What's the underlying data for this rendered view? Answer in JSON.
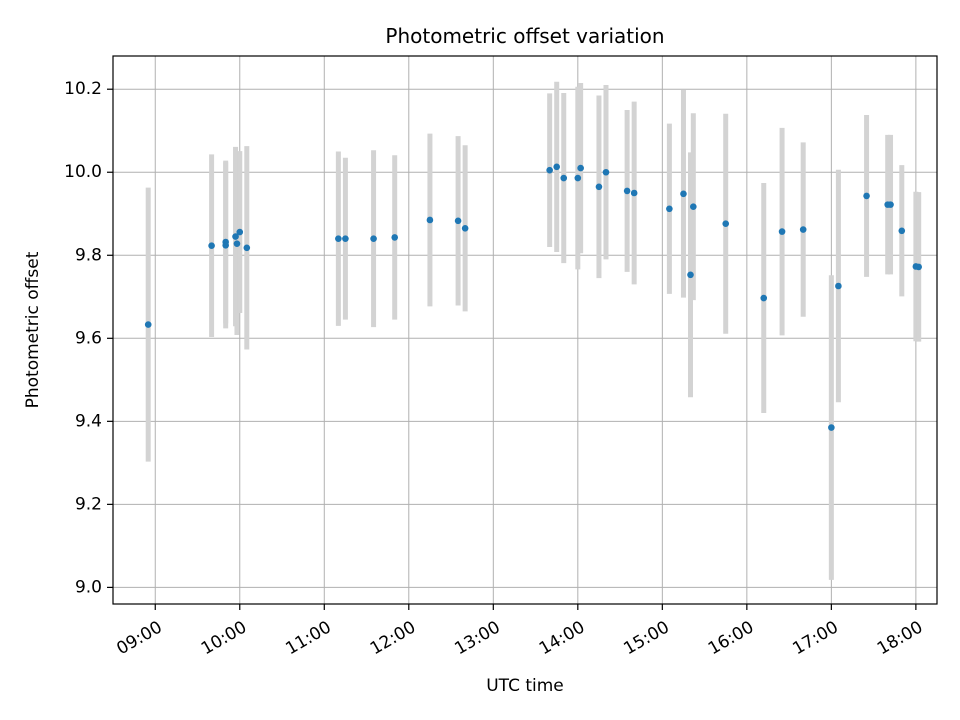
{
  "chart_data": {
    "type": "scatter",
    "title": "Photometric offset variation",
    "xlabel": "UTC time",
    "ylabel": "Photometric offset",
    "x_ticks": [
      "09:00",
      "10:00",
      "11:00",
      "12:00",
      "13:00",
      "14:00",
      "15:00",
      "16:00",
      "17:00",
      "18:00"
    ],
    "y_ticks": [
      "9.0",
      "9.2",
      "9.4",
      "9.6",
      "9.8",
      "10.0",
      "10.2"
    ],
    "xlim": [
      "08:30",
      "18:15"
    ],
    "ylim": [
      8.96,
      10.28
    ],
    "grid": true,
    "series": [
      {
        "marker_color": "#1f77b4",
        "errorbar_color": "#d3d3d3",
        "points": [
          {
            "t": "08:55",
            "y": 9.633,
            "err": 0.33
          },
          {
            "t": "09:40",
            "y": 9.823,
            "err": 0.22
          },
          {
            "t": "09:50",
            "y": 9.832,
            "err": 0.196
          },
          {
            "t": "09:50",
            "y": 9.824,
            "err": 0.2
          },
          {
            "t": "09:57",
            "y": 9.845,
            "err": 0.216
          },
          {
            "t": "09:58",
            "y": 9.828,
            "err": 0.22
          },
          {
            "t": "10:00",
            "y": 9.856,
            "err": 0.195
          },
          {
            "t": "10:05",
            "y": 9.818,
            "err": 0.245
          },
          {
            "t": "11:10",
            "y": 9.84,
            "err": 0.21
          },
          {
            "t": "11:15",
            "y": 9.84,
            "err": 0.195
          },
          {
            "t": "11:35",
            "y": 9.84,
            "err": 0.213
          },
          {
            "t": "11:50",
            "y": 9.843,
            "err": 0.198
          },
          {
            "t": "12:15",
            "y": 9.885,
            "err": 0.208
          },
          {
            "t": "12:35",
            "y": 9.883,
            "err": 0.204
          },
          {
            "t": "12:40",
            "y": 9.865,
            "err": 0.2
          },
          {
            "t": "13:40",
            "y": 10.005,
            "err": 0.185
          },
          {
            "t": "13:45",
            "y": 10.013,
            "err": 0.205
          },
          {
            "t": "13:50",
            "y": 9.986,
            "err": 0.205
          },
          {
            "t": "14:00",
            "y": 9.986,
            "err": 0.22
          },
          {
            "t": "14:02",
            "y": 10.01,
            "err": 0.205
          },
          {
            "t": "14:15",
            "y": 9.965,
            "err": 0.22
          },
          {
            "t": "14:20",
            "y": 10.0,
            "err": 0.21
          },
          {
            "t": "14:35",
            "y": 9.955,
            "err": 0.195
          },
          {
            "t": "14:40",
            "y": 9.95,
            "err": 0.22
          },
          {
            "t": "15:05",
            "y": 9.912,
            "err": 0.205
          },
          {
            "t": "15:15",
            "y": 9.948,
            "err": 0.25
          },
          {
            "t": "15:20",
            "y": 9.753,
            "err": 0.295
          },
          {
            "t": "15:22",
            "y": 9.917,
            "err": 0.225
          },
          {
            "t": "15:45",
            "y": 9.876,
            "err": 0.265
          },
          {
            "t": "16:12",
            "y": 9.697,
            "err": 0.277
          },
          {
            "t": "16:25",
            "y": 9.857,
            "err": 0.25
          },
          {
            "t": "16:40",
            "y": 9.862,
            "err": 0.21
          },
          {
            "t": "17:00",
            "y": 9.385,
            "err": 0.367
          },
          {
            "t": "17:05",
            "y": 9.726,
            "err": 0.28
          },
          {
            "t": "17:25",
            "y": 9.943,
            "err": 0.195
          },
          {
            "t": "17:40",
            "y": 9.922,
            "err": 0.168
          },
          {
            "t": "17:42",
            "y": 9.922,
            "err": 0.168
          },
          {
            "t": "17:50",
            "y": 9.859,
            "err": 0.158
          },
          {
            "t": "18:00",
            "y": 9.773,
            "err": 0.18
          },
          {
            "t": "18:02",
            "y": 9.772,
            "err": 0.18
          }
        ]
      }
    ]
  }
}
